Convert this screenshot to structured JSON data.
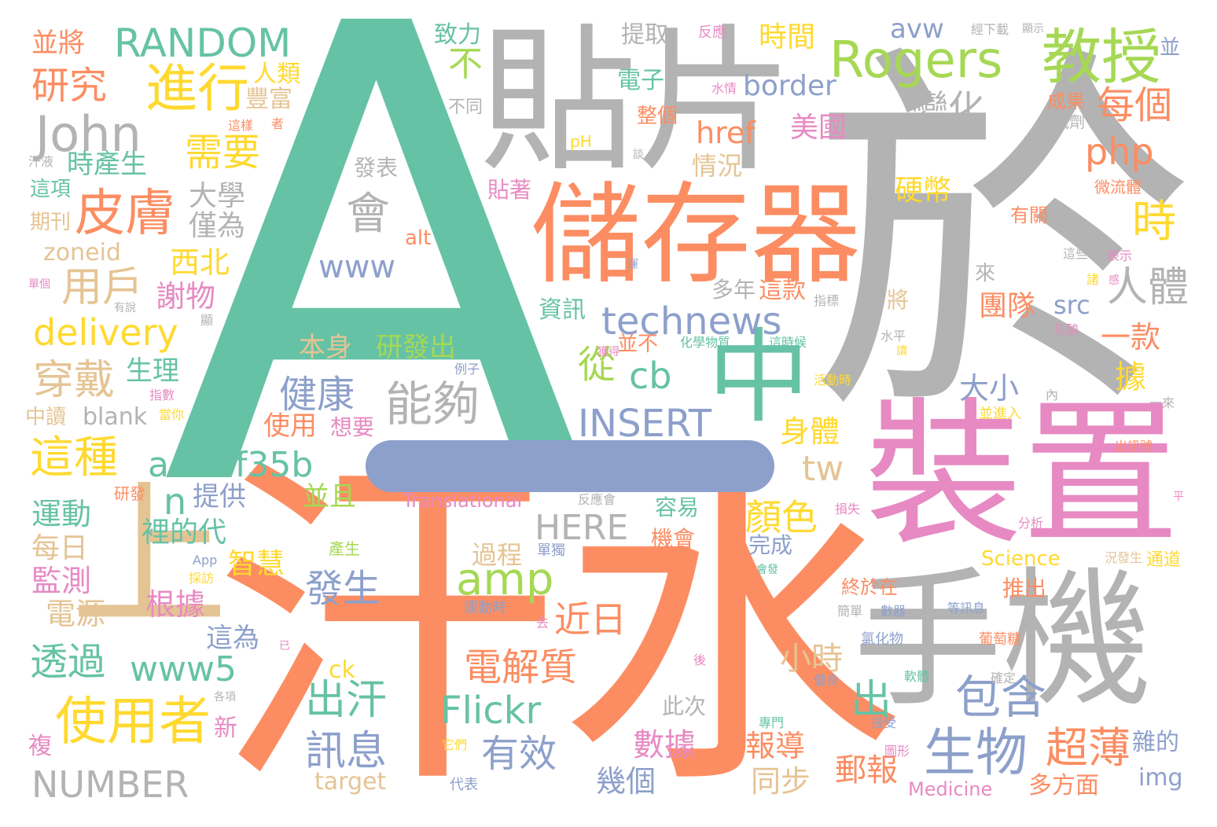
{
  "colors": {
    "teal": "#66c2a5",
    "orange": "#fc8d62",
    "blue": "#8da0cb",
    "pink": "#e78ac3",
    "lime": "#a6d854",
    "yellow": "#ffd92f",
    "tan": "#e5c494",
    "gray": "#b3b3b3"
  },
  "words": [
    {
      "text": "A",
      "color": "teal"
    },
    {
      "text": "於",
      "color": "gray"
    },
    {
      "text": "汗水",
      "color": "orange"
    },
    {
      "text": "貼片",
      "color": "gray"
    },
    {
      "text": "儲存器",
      "color": "orange"
    },
    {
      "text": "裝置",
      "color": "pink"
    },
    {
      "text": "手機",
      "color": "gray"
    },
    {
      "text": "上",
      "color": "tan"
    },
    {
      "text": "中",
      "color": "teal"
    },
    {
      "text": "Rogers",
      "color": "lime"
    },
    {
      "text": "教授",
      "color": "lime"
    },
    {
      "text": "RANDOM",
      "color": "teal"
    },
    {
      "text": "John",
      "color": "gray"
    },
    {
      "text": "進行",
      "color": "yellow"
    },
    {
      "text": "皮膚",
      "color": "orange"
    },
    {
      "text": "使用者",
      "color": "yellow"
    },
    {
      "text": "生物",
      "color": "blue"
    },
    {
      "text": "amp",
      "color": "lime"
    },
    {
      "text": "technews",
      "color": "blue"
    },
    {
      "text": "INSERT",
      "color": "blue"
    },
    {
      "text": "a4b3f35b",
      "color": "teal"
    },
    {
      "text": "能夠",
      "color": "gray"
    },
    {
      "text": "這種",
      "color": "yellow"
    },
    {
      "text": "delivery",
      "color": "yellow"
    },
    {
      "text": "NUMBER",
      "color": "gray"
    },
    {
      "text": "HERE",
      "color": "gray"
    },
    {
      "text": "www",
      "color": "blue"
    },
    {
      "text": "www5",
      "color": "teal"
    },
    {
      "text": "Flickr",
      "color": "teal"
    },
    {
      "text": "php",
      "color": "orange"
    },
    {
      "text": "每個",
      "color": "orange"
    },
    {
      "text": "變化",
      "color": "gray"
    },
    {
      "text": "需要",
      "color": "yellow"
    },
    {
      "text": "研究",
      "color": "orange"
    },
    {
      "text": "並將",
      "color": "orange"
    },
    {
      "text": "人類",
      "color": "yellow"
    },
    {
      "text": "豐富",
      "color": "tan"
    },
    {
      "text": "時產生",
      "color": "teal"
    },
    {
      "text": "這項",
      "color": "teal"
    },
    {
      "text": "期刊",
      "color": "tan"
    },
    {
      "text": "zoneid",
      "color": "tan"
    },
    {
      "text": "用戶",
      "color": "tan"
    },
    {
      "text": "大學",
      "color": "gray"
    },
    {
      "text": "僅為",
      "color": "gray"
    },
    {
      "text": "西北",
      "color": "yellow"
    },
    {
      "text": "謝物",
      "color": "pink"
    },
    {
      "text": "穿戴",
      "color": "tan"
    },
    {
      "text": "生理",
      "color": "teal"
    },
    {
      "text": "blank",
      "color": "gray"
    },
    {
      "text": "中讀",
      "color": "tan"
    },
    {
      "text": "指數",
      "color": "pink"
    },
    {
      "text": "當你",
      "color": "yellow"
    },
    {
      "text": "健康",
      "color": "blue"
    },
    {
      "text": "使用",
      "color": "orange"
    },
    {
      "text": "想要",
      "color": "pink"
    },
    {
      "text": "cb",
      "color": "teal"
    },
    {
      "text": "從",
      "color": "lime"
    },
    {
      "text": "會",
      "color": "gray"
    },
    {
      "text": "發表",
      "color": "gray"
    },
    {
      "text": "時間",
      "color": "yellow"
    },
    {
      "text": "avw",
      "color": "blue"
    },
    {
      "text": "border",
      "color": "blue"
    },
    {
      "text": "href",
      "color": "orange"
    },
    {
      "text": "情況",
      "color": "tan"
    },
    {
      "text": "美國",
      "color": "pink"
    },
    {
      "text": "電子",
      "color": "teal"
    },
    {
      "text": "整個",
      "color": "orange"
    },
    {
      "text": "提取",
      "color": "gray"
    },
    {
      "text": "致力",
      "color": "teal"
    },
    {
      "text": "不",
      "color": "lime"
    },
    {
      "text": "不同",
      "color": "gray"
    },
    {
      "text": "pH",
      "color": "yellow"
    },
    {
      "text": "貼著",
      "color": "pink"
    },
    {
      "text": "資訊",
      "color": "teal"
    },
    {
      "text": "多年",
      "color": "gray"
    },
    {
      "text": "這款",
      "color": "orange"
    },
    {
      "text": "本身",
      "color": "tan"
    },
    {
      "text": "研發出",
      "color": "lime"
    },
    {
      "text": "並不",
      "color": "orange"
    },
    {
      "text": "alt",
      "color": "orange"
    },
    {
      "text": "n",
      "color": "teal"
    },
    {
      "text": "tw",
      "color": "tan"
    },
    {
      "text": "時",
      "color": "yellow"
    },
    {
      "text": "人體",
      "color": "gray"
    },
    {
      "text": "硬幣",
      "color": "yellow"
    },
    {
      "text": "團隊",
      "color": "orange"
    },
    {
      "text": "src",
      "color": "blue"
    },
    {
      "text": "一款",
      "color": "orange"
    },
    {
      "text": "大小",
      "color": "blue"
    },
    {
      "text": "據",
      "color": "yellow"
    },
    {
      "text": "身體",
      "color": "yellow"
    },
    {
      "text": "顏色",
      "color": "yellow"
    },
    {
      "text": "機會",
      "color": "orange"
    },
    {
      "text": "容易",
      "color": "teal"
    },
    {
      "text": "完成",
      "color": "blue"
    },
    {
      "text": "提供",
      "color": "blue"
    },
    {
      "text": "並且",
      "color": "lime"
    },
    {
      "text": "裡的代",
      "color": "teal"
    },
    {
      "text": "智慧",
      "color": "yellow"
    },
    {
      "text": "發生",
      "color": "blue"
    },
    {
      "text": "近日",
      "color": "orange"
    },
    {
      "text": "過程",
      "color": "tan"
    },
    {
      "text": "運動",
      "color": "teal"
    },
    {
      "text": "每日",
      "color": "tan"
    },
    {
      "text": "監測",
      "color": "pink"
    },
    {
      "text": "電源",
      "color": "tan"
    },
    {
      "text": "根據",
      "color": "pink"
    },
    {
      "text": "這為",
      "color": "blue"
    },
    {
      "text": "透過",
      "color": "teal"
    },
    {
      "text": "電解質",
      "color": "orange"
    },
    {
      "text": "出汗",
      "color": "teal"
    },
    {
      "text": "訊息",
      "color": "blue"
    },
    {
      "text": "有效",
      "color": "blue"
    },
    {
      "text": "數據",
      "color": "pink"
    },
    {
      "text": "幾個",
      "color": "blue"
    },
    {
      "text": "小時",
      "color": "tan"
    },
    {
      "text": "報導",
      "color": "orange"
    },
    {
      "text": "同步",
      "color": "tan"
    },
    {
      "text": "郵報",
      "color": "orange"
    },
    {
      "text": "出",
      "color": "teal"
    },
    {
      "text": "包含",
      "color": "blue"
    },
    {
      "text": "超薄",
      "color": "orange"
    },
    {
      "text": "終於在",
      "color": "orange"
    },
    {
      "text": "推出",
      "color": "orange"
    },
    {
      "text": "Science",
      "color": "yellow"
    },
    {
      "text": "多方面",
      "color": "orange"
    },
    {
      "text": "雜的",
      "color": "blue"
    },
    {
      "text": "img",
      "color": "blue"
    },
    {
      "text": "通道",
      "color": "yellow"
    },
    {
      "text": "Medicine",
      "color": "pink"
    },
    {
      "text": "target",
      "color": "tan"
    },
    {
      "text": "ck",
      "color": "yellow"
    },
    {
      "text": "Translational",
      "color": "pink"
    },
    {
      "text": "新",
      "color": "pink"
    },
    {
      "text": "複",
      "color": "pink"
    },
    {
      "text": "此次",
      "color": "gray"
    },
    {
      "text": "成果",
      "color": "orange"
    },
    {
      "text": "試劑",
      "color": "gray"
    },
    {
      "text": "經下載",
      "color": "gray"
    },
    {
      "text": "反應",
      "color": "pink"
    },
    {
      "text": "並",
      "color": "blue"
    },
    {
      "text": "微流體",
      "color": "orange"
    },
    {
      "text": "有關",
      "color": "orange"
    },
    {
      "text": "表示",
      "color": "pink"
    },
    {
      "text": "這些",
      "color": "gray"
    },
    {
      "text": "水情",
      "color": "pink"
    },
    {
      "text": "汗液",
      "color": "gray"
    },
    {
      "text": "這樣",
      "color": "orange"
    },
    {
      "text": "這時候",
      "color": "teal"
    },
    {
      "text": "化學物質",
      "color": "teal"
    },
    {
      "text": "指標",
      "color": "gray"
    },
    {
      "text": "乳酸",
      "color": "pink"
    },
    {
      "text": "水平",
      "color": "gray"
    },
    {
      "text": "單獨",
      "color": "blue"
    },
    {
      "text": "運動時",
      "color": "blue"
    },
    {
      "text": "例子",
      "color": "blue"
    },
    {
      "text": "獲得",
      "color": "pink"
    },
    {
      "text": "活動時",
      "color": "yellow"
    },
    {
      "text": "並進入",
      "color": "yellow"
    },
    {
      "text": "出訊號",
      "color": "orange"
    },
    {
      "text": "損失",
      "color": "pink"
    },
    {
      "text": "分析",
      "color": "pink"
    },
    {
      "text": "況發生",
      "color": "tan"
    },
    {
      "text": "等訊息",
      "color": "blue"
    },
    {
      "text": "數器",
      "color": "blue"
    },
    {
      "text": "簡單",
      "color": "gray"
    },
    {
      "text": "氯化物",
      "color": "blue"
    },
    {
      "text": "葡萄糖",
      "color": "orange"
    },
    {
      "text": "確定",
      "color": "gray"
    },
    {
      "text": "軟體",
      "color": "teal"
    },
    {
      "text": "健身",
      "color": "blue"
    },
    {
      "text": "接受",
      "color": "blue"
    },
    {
      "text": "圖形",
      "color": "pink"
    },
    {
      "text": "專門",
      "color": "teal"
    },
    {
      "text": "後",
      "color": "pink"
    },
    {
      "text": "去",
      "color": "pink"
    },
    {
      "text": "已",
      "color": "pink"
    },
    {
      "text": "它們",
      "color": "yellow"
    },
    {
      "text": "代表",
      "color": "blue"
    },
    {
      "text": "各項",
      "color": "gray"
    },
    {
      "text": "採訪",
      "color": "yellow"
    },
    {
      "text": "App",
      "color": "blue"
    },
    {
      "text": "會發",
      "color": "teal"
    },
    {
      "text": "反應會",
      "color": "gray"
    },
    {
      "text": "產生",
      "color": "lime"
    },
    {
      "text": "研發",
      "color": "orange"
    },
    {
      "text": "一來",
      "color": "gray"
    },
    {
      "text": "內",
      "color": "gray"
    },
    {
      "text": "讀",
      "color": "yellow"
    },
    {
      "text": "平",
      "color": "pink"
    },
    {
      "text": "將",
      "color": "tan"
    },
    {
      "text": "來",
      "color": "gray"
    },
    {
      "text": "單個",
      "color": "pink"
    },
    {
      "text": "有說",
      "color": "gray"
    },
    {
      "text": "顯",
      "color": "gray"
    },
    {
      "text": "諸",
      "color": "yellow"
    },
    {
      "text": "者",
      "color": "orange"
    },
    {
      "text": "談",
      "color": "gray"
    },
    {
      "text": "顯示",
      "color": "gray"
    },
    {
      "text": "運",
      "color": "blue"
    },
    {
      "text": "感",
      "color": "pink"
    }
  ]
}
